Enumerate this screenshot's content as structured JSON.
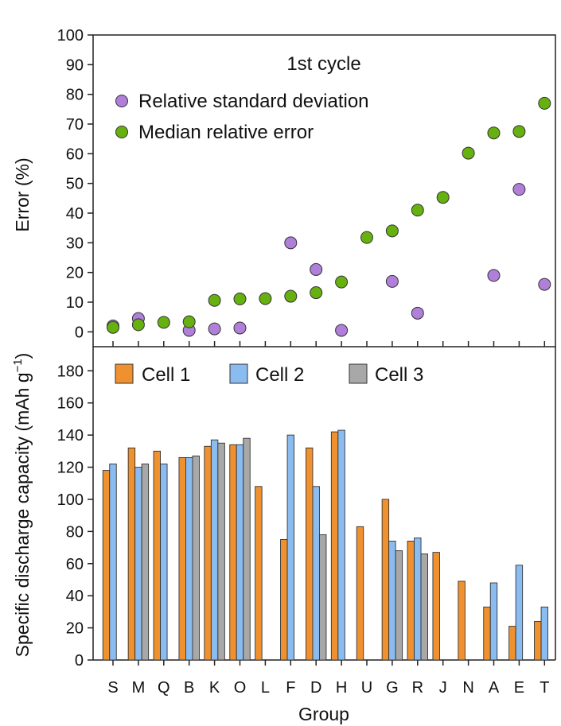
{
  "chart_data": [
    {
      "type": "scatter",
      "title": "1st cycle",
      "ylabel": "Error (%)",
      "ylim": [
        -5,
        100
      ],
      "yticks": [
        0,
        10,
        20,
        30,
        40,
        50,
        60,
        70,
        80,
        90,
        100
      ],
      "categories": [
        "S",
        "M",
        "Q",
        "B",
        "K",
        "O",
        "L",
        "F",
        "D",
        "H",
        "U",
        "G",
        "R",
        "J",
        "N",
        "A",
        "E",
        "T"
      ],
      "series": [
        {
          "name": "Relative standard deviation",
          "color": "#b07fd9",
          "values": [
            2,
            4.5,
            null,
            0.5,
            1,
            1.3,
            null,
            30,
            21,
            null,
            null,
            17,
            6.3,
            null,
            null,
            19,
            48,
            16
          ],
          "extra_points": [
            {
              "category": "H",
              "value": 0.5
            }
          ]
        },
        {
          "name": "Median relative error",
          "color": "#66b010",
          "values": [
            1.5,
            2.4,
            3.2,
            3.4,
            10.6,
            11.1,
            11.2,
            12,
            13.2,
            16.8,
            31.8,
            34,
            41,
            45.3,
            60.2,
            67,
            67.5,
            77
          ]
        }
      ]
    },
    {
      "type": "bar",
      "xlabel": "Group",
      "ylabel": "Specific discharge capacity (mAh g",
      "ylabel_sup": "−1",
      "ylabel_close": ")",
      "ylim": [
        0,
        195
      ],
      "yticks": [
        0,
        20,
        40,
        60,
        80,
        100,
        120,
        140,
        160,
        180
      ],
      "categories": [
        "S",
        "M",
        "Q",
        "B",
        "K",
        "O",
        "L",
        "F",
        "D",
        "H",
        "U",
        "G",
        "R",
        "J",
        "N",
        "A",
        "E",
        "T"
      ],
      "series": [
        {
          "name": "Cell 1",
          "color": "#f0912f",
          "values": [
            118,
            132,
            130,
            126,
            133,
            134,
            108,
            75,
            132,
            142,
            83,
            100,
            74,
            67,
            49,
            33,
            21,
            24
          ]
        },
        {
          "name": "Cell 2",
          "color": "#8bbcf0",
          "values": [
            122,
            120,
            122,
            126,
            137,
            134,
            null,
            140,
            108,
            143,
            null,
            74,
            76,
            null,
            null,
            48,
            59,
            33
          ]
        },
        {
          "name": "Cell 3",
          "color": "#a8a8a8",
          "values": [
            null,
            122,
            null,
            127,
            135,
            138,
            null,
            null,
            78,
            null,
            null,
            68,
            66,
            null,
            null,
            null,
            null,
            null
          ]
        }
      ]
    }
  ]
}
